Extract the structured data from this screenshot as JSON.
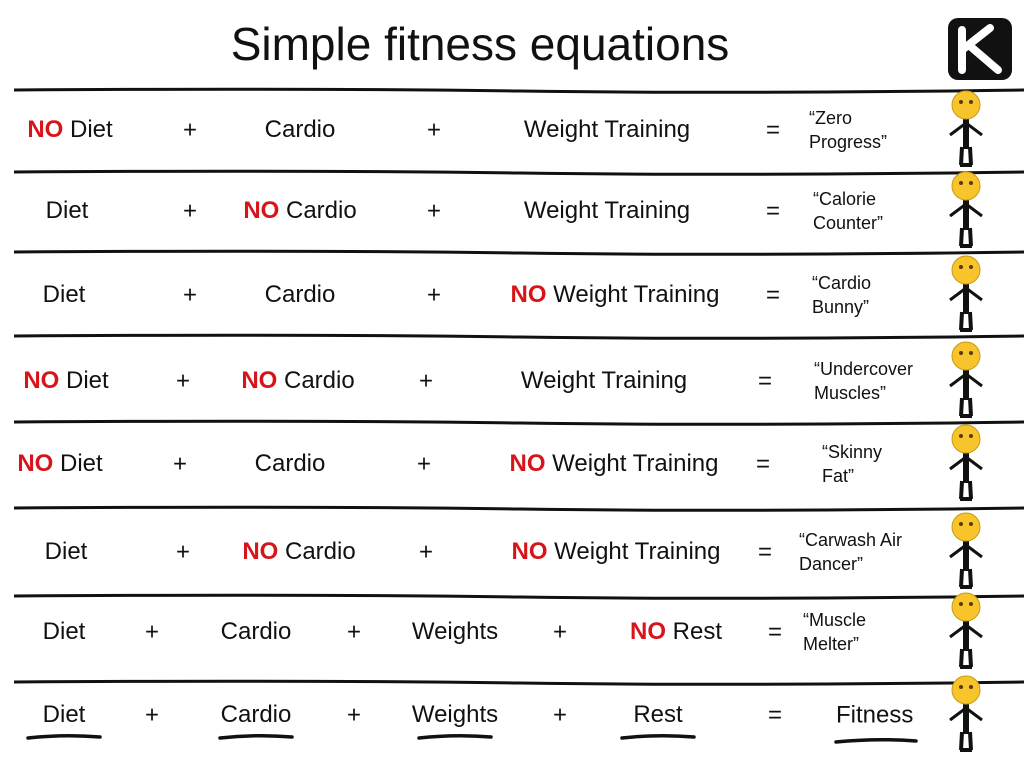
{
  "header": {
    "title": "Simple fitness equations"
  },
  "rows": [
    {
      "items": [
        {
          "no": "NO",
          "text": "Diet"
        },
        {
          "op": "+"
        },
        {
          "text": "Cardio"
        },
        {
          "op": "+"
        },
        {
          "text": "Weight Training"
        },
        {
          "op": "="
        }
      ],
      "result": [
        "“Zero",
        "Progress”"
      ]
    },
    {
      "items": [
        {
          "text": "Diet"
        },
        {
          "op": "+"
        },
        {
          "no": "NO",
          "text": "Cardio"
        },
        {
          "op": "+"
        },
        {
          "text": "Weight Training"
        },
        {
          "op": "="
        }
      ],
      "result": [
        "“Calorie",
        "Counter”"
      ]
    },
    {
      "items": [
        {
          "text": "Diet"
        },
        {
          "op": "+"
        },
        {
          "text": "Cardio"
        },
        {
          "op": "+"
        },
        {
          "no": "NO",
          "text": "Weight Training"
        },
        {
          "op": "="
        }
      ],
      "result": [
        "“Cardio",
        "Bunny”"
      ]
    },
    {
      "items": [
        {
          "no": "NO",
          "text": "Diet"
        },
        {
          "op": "+"
        },
        {
          "no": "NO",
          "text": "Cardio"
        },
        {
          "op": "+"
        },
        {
          "text": "Weight Training"
        },
        {
          "op": "="
        }
      ],
      "result": [
        "“Undercover",
        "Muscles”"
      ]
    },
    {
      "items": [
        {
          "no": "NO",
          "text": "Diet"
        },
        {
          "op": "+"
        },
        {
          "text": "Cardio"
        },
        {
          "op": "+"
        },
        {
          "no": "NO",
          "text": "Weight Training"
        },
        {
          "op": "="
        }
      ],
      "result": [
        "“Skinny",
        "Fat”"
      ]
    },
    {
      "items": [
        {
          "text": "Diet"
        },
        {
          "op": "+"
        },
        {
          "no": "NO",
          "text": "Cardio"
        },
        {
          "op": "+"
        },
        {
          "no": "NO",
          "text": "Weight Training"
        },
        {
          "op": "="
        }
      ],
      "result": [
        "“Carwash Air",
        "Dancer”"
      ]
    },
    {
      "items": [
        {
          "text": "Diet"
        },
        {
          "op": "+"
        },
        {
          "text": "Cardio"
        },
        {
          "op": "+"
        },
        {
          "text": "Weights"
        },
        {
          "op": "+"
        },
        {
          "no": "NO",
          "text": "Rest"
        },
        {
          "op": "="
        }
      ],
      "result": [
        "“Muscle",
        "Melter”"
      ]
    },
    {
      "items": [
        {
          "text": "Diet"
        },
        {
          "op": "+"
        },
        {
          "text": "Cardio"
        },
        {
          "op": "+"
        },
        {
          "text": "Weights"
        },
        {
          "op": "+"
        },
        {
          "text": "Rest"
        },
        {
          "op": "="
        }
      ],
      "result": [
        "Fitness"
      ]
    }
  ]
}
